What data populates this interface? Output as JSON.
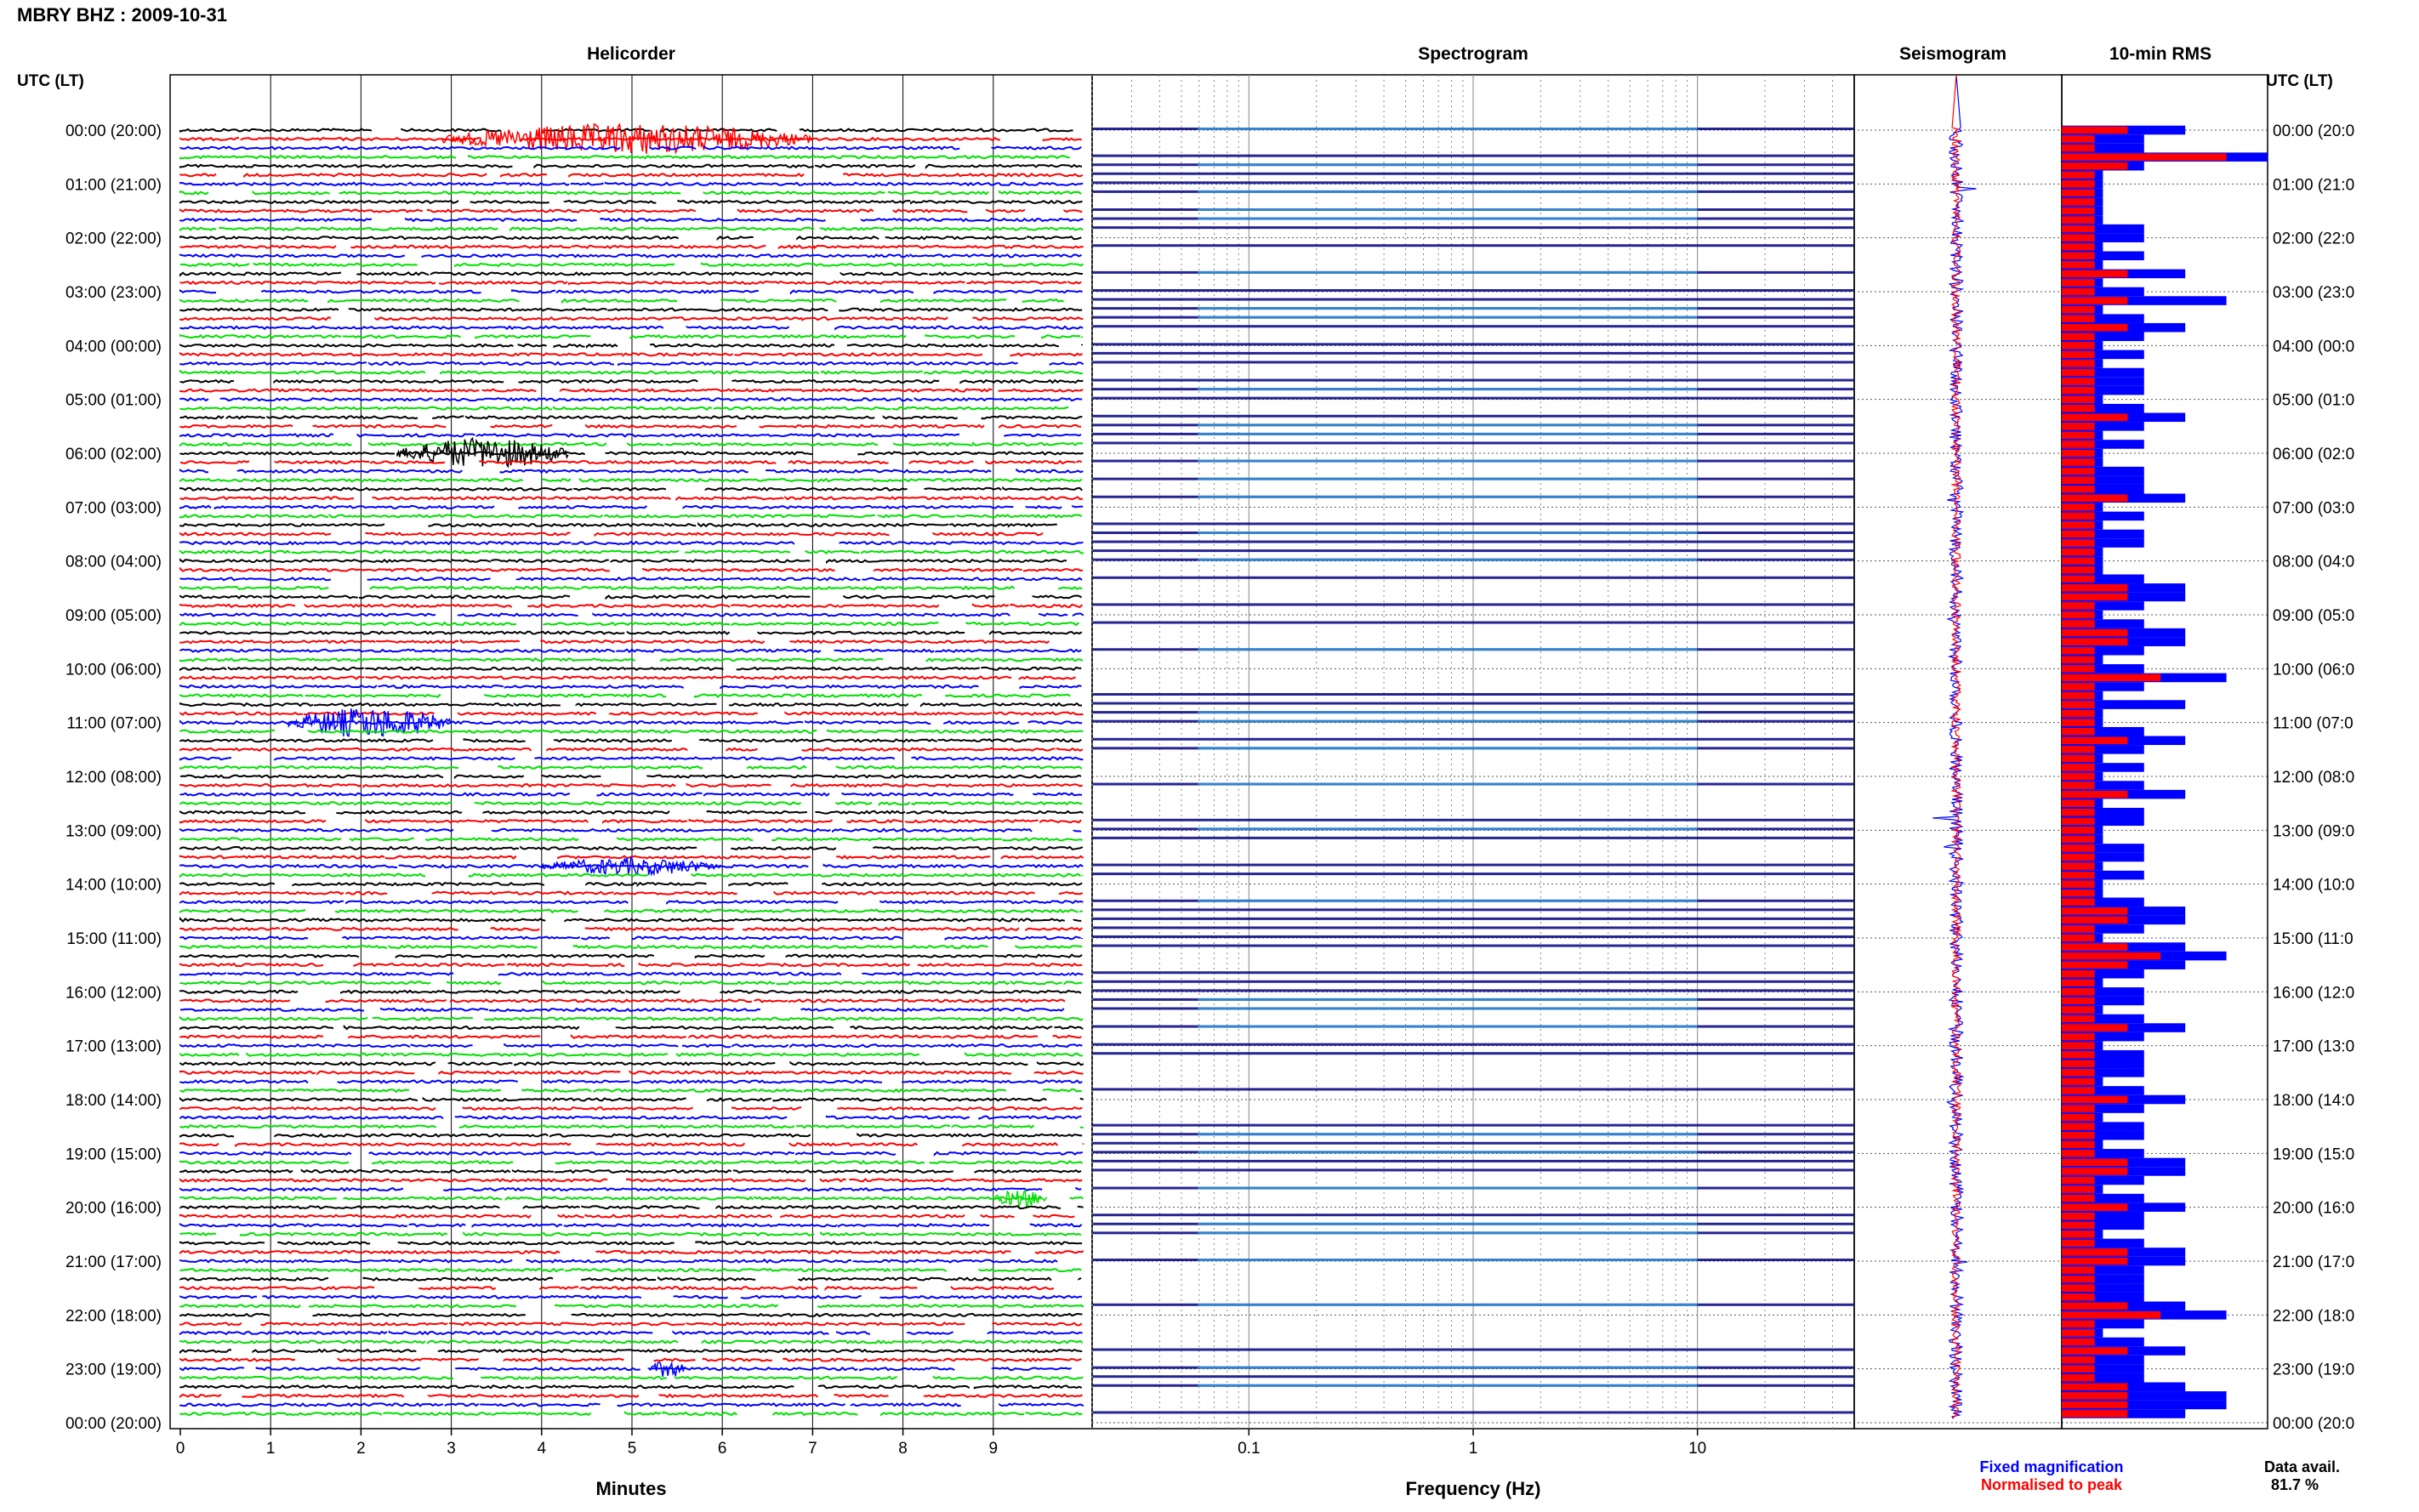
{
  "header": {
    "station_title": "MBRY BHZ : 2009-10-31",
    "utc_label": "UTC (LT)",
    "panels": [
      "Helicorder",
      "Spectrogram",
      "Seismogram",
      "10-min RMS"
    ]
  },
  "time_labels": [
    "00:00 (20:00)",
    "01:00 (21:00)",
    "02:00 (22:00)",
    "03:00 (23:00)",
    "04:00 (00:00)",
    "05:00 (01:00)",
    "06:00 (02:00)",
    "07:00 (03:00)",
    "08:00 (04:00)",
    "09:00 (05:00)",
    "10:00 (06:00)",
    "11:00 (07:00)",
    "12:00 (08:00)",
    "13:00 (09:00)",
    "14:00 (10:00)",
    "15:00 (11:00)",
    "16:00 (12:00)",
    "17:00 (13:00)",
    "18:00 (14:00)",
    "19:00 (15:00)",
    "20:00 (16:00)",
    "21:00 (17:00)",
    "22:00 (18:00)",
    "23:00 (19:00)",
    "00:00 (20:00)"
  ],
  "right_time_labels": [
    "00:00 (20:0",
    "01:00 (21:0",
    "02:00 (22:0",
    "03:00 (23:0",
    "04:00 (00:0",
    "05:00 (01:0",
    "06:00 (02:0",
    "07:00 (03:0",
    "08:00 (04:0",
    "09:00 (05:0",
    "10:00 (06:0",
    "11:00 (07:0",
    "12:00 (08:0",
    "13:00 (09:0",
    "14:00 (10:0",
    "15:00 (11:0",
    "16:00 (12:0",
    "17:00 (13:0",
    "18:00 (14:0",
    "19:00 (15:0",
    "20:00 (16:0",
    "21:00 (17:0",
    "22:00 (18:0",
    "23:00 (19:0",
    "00:00 (20:0"
  ],
  "helicorder": {
    "xlabel": "Minutes",
    "ticks": [
      "0",
      "1",
      "2",
      "3",
      "4",
      "5",
      "6",
      "7",
      "8",
      "9"
    ]
  },
  "spectrogram": {
    "xlabel": "Frequency (Hz)",
    "ticks": [
      "0.1",
      "1",
      "10"
    ]
  },
  "footer": {
    "legend_fixed": "Fixed magnification",
    "legend_norm": "Normalised to peak",
    "data_avail_label": "Data avail.",
    "data_avail_value": "81.7 %"
  },
  "colors": {
    "trace_cycle": [
      "#000000",
      "#ff0000",
      "#0000ff",
      "#00e000"
    ],
    "fixed": "#0000ff",
    "normalised": "#ff0000",
    "spectro_dark": "#000080",
    "spectro_light": "#40d0ff"
  },
  "chart_data": [
    {
      "type": "line",
      "title": "Helicorder",
      "xlabel": "Minutes",
      "xlim": [
        0,
        10
      ],
      "rows": 144,
      "row_minutes": 10,
      "events": [
        {
          "time": "00:10",
          "minute_start": 2.9,
          "minute_end": 7.0,
          "amplitude": "large"
        },
        {
          "time": "06:00",
          "minute_start": 2.4,
          "minute_end": 4.3,
          "amplitude": "large"
        },
        {
          "time": "11:00",
          "minute_start": 1.2,
          "minute_end": 3.0,
          "amplitude": "large"
        },
        {
          "time": "13:40",
          "minute_start": 4.0,
          "minute_end": 6.0,
          "amplitude": "medium"
        },
        {
          "time": "19:50",
          "minute_start": 9.0,
          "minute_end": 9.6,
          "amplitude": "medium"
        },
        {
          "time": "23:00",
          "minute_start": 5.2,
          "minute_end": 5.6,
          "amplitude": "medium"
        }
      ]
    },
    {
      "type": "heatmap",
      "title": "Spectrogram",
      "xlabel": "Frequency (Hz)",
      "xscale": "log",
      "xlim": [
        0.02,
        50
      ],
      "bright_band_hz": [
        0.1,
        10
      ]
    },
    {
      "type": "line",
      "title": "Seismogram",
      "series": [
        {
          "name": "Fixed magnification",
          "color": "#0000ff"
        },
        {
          "name": "Normalised to peak",
          "color": "#ff0000"
        }
      ]
    },
    {
      "type": "bar",
      "title": "10-min RMS",
      "orientation": "horizontal",
      "series": [
        {
          "name": "Fixed magnification",
          "color": "#0000ff",
          "values": [
            3,
            2,
            2,
            5,
            2,
            1,
            1,
            1,
            1,
            1,
            1,
            2,
            2,
            1,
            2,
            1,
            3,
            1,
            2,
            4,
            1,
            2,
            3,
            2,
            1,
            2,
            1,
            2,
            2,
            2,
            1,
            2,
            3,
            2,
            1,
            2,
            1,
            1,
            2,
            2,
            2,
            3,
            1,
            2,
            1,
            2,
            2,
            1,
            1,
            1,
            2,
            3,
            3,
            2,
            1,
            2,
            3,
            3,
            2,
            1,
            2,
            4,
            2,
            1,
            3,
            1,
            1,
            2,
            3,
            2,
            1,
            2,
            1,
            2,
            3,
            1,
            2,
            2,
            1,
            1,
            2,
            2,
            1,
            2,
            1,
            1,
            2,
            3,
            3,
            2,
            1,
            3,
            4,
            3,
            2,
            1,
            2,
            2,
            1,
            2,
            3,
            2,
            1,
            2,
            2,
            2,
            1,
            2,
            3,
            2,
            1,
            2,
            2,
            1,
            2,
            3,
            3,
            2,
            1,
            2,
            3,
            2,
            2,
            1,
            2,
            3,
            3,
            2,
            2,
            2,
            2,
            3,
            4,
            2,
            1,
            2,
            3,
            2,
            2,
            2,
            3,
            4,
            4,
            3
          ]
        },
        {
          "name": "Normalised to peak",
          "color": "#ff0000",
          "values": [
            2,
            1,
            1,
            5,
            2,
            1,
            1,
            1,
            1,
            1,
            1,
            1,
            1,
            1,
            1,
            1,
            2,
            1,
            1,
            2,
            1,
            1,
            2,
            1,
            1,
            1,
            1,
            1,
            1,
            1,
            1,
            1,
            2,
            1,
            1,
            1,
            1,
            1,
            1,
            1,
            1,
            2,
            1,
            1,
            1,
            1,
            1,
            1,
            1,
            1,
            1,
            2,
            2,
            1,
            1,
            1,
            2,
            2,
            1,
            1,
            1,
            3,
            1,
            1,
            1,
            1,
            1,
            1,
            2,
            1,
            1,
            1,
            1,
            1,
            2,
            1,
            1,
            1,
            1,
            1,
            1,
            1,
            1,
            1,
            1,
            1,
            1,
            2,
            2,
            1,
            1,
            2,
            3,
            2,
            1,
            1,
            1,
            1,
            1,
            1,
            2,
            1,
            1,
            1,
            1,
            1,
            1,
            1,
            2,
            1,
            1,
            1,
            1,
            1,
            1,
            2,
            2,
            1,
            1,
            1,
            2,
            1,
            1,
            1,
            1,
            2,
            2,
            1,
            1,
            1,
            1,
            2,
            3,
            1,
            1,
            1,
            2,
            1,
            1,
            1,
            2,
            2,
            2,
            2
          ]
        }
      ]
    }
  ]
}
